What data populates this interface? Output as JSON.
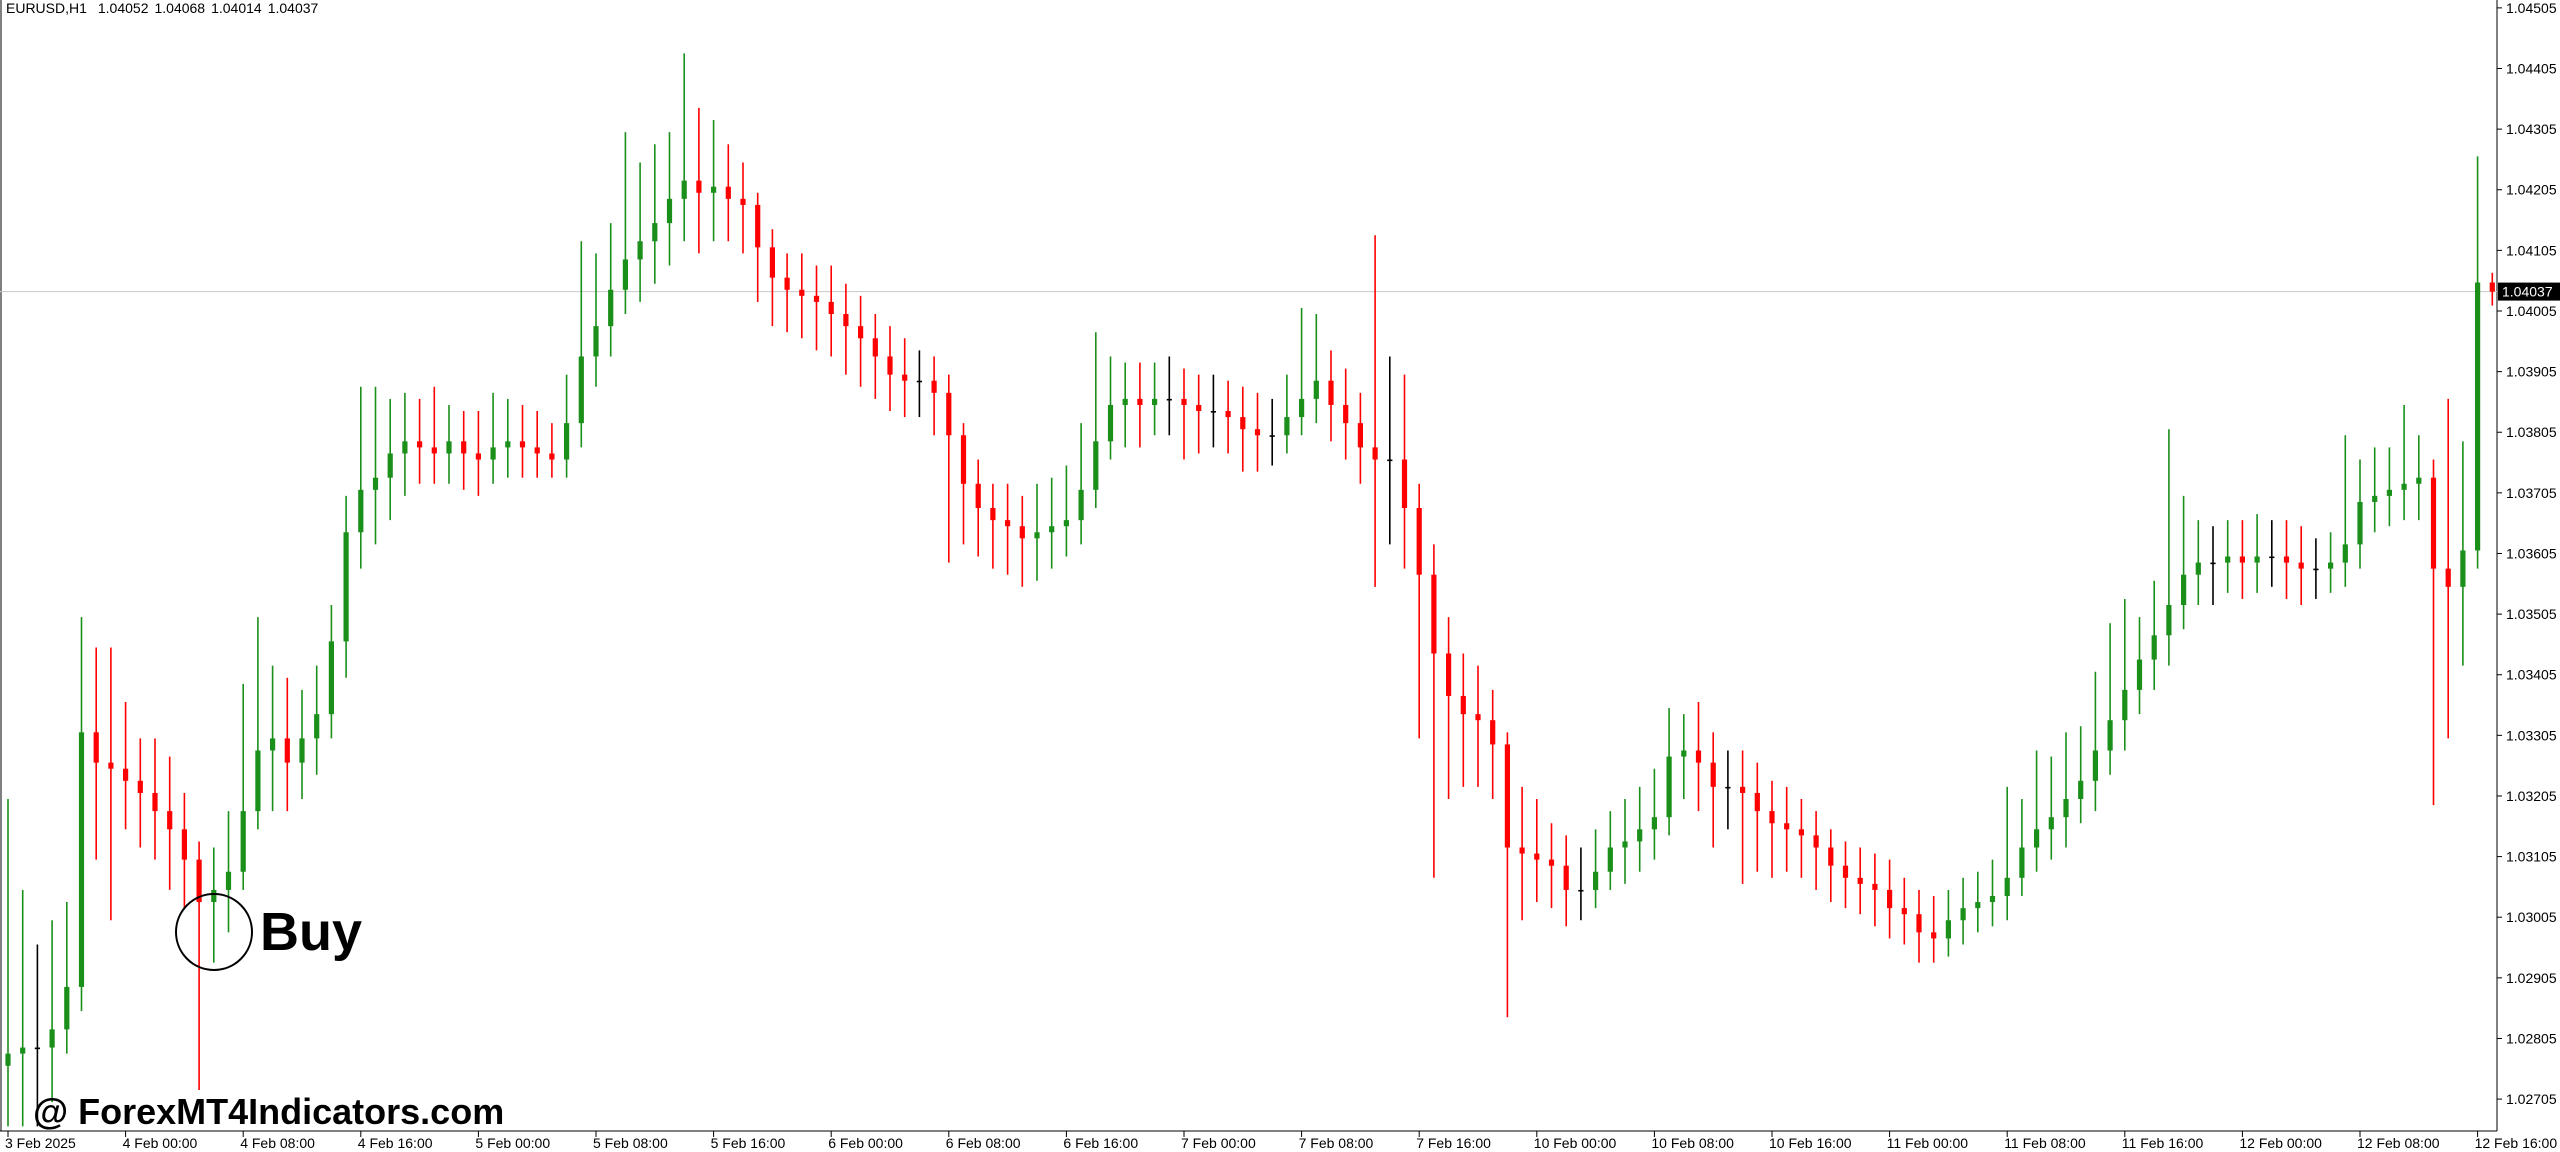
{
  "chart_data": {
    "type": "candlestick",
    "title": "EURUSD,H1",
    "annotation": "Buy",
    "watermark": "@ ForexMT4Indicators.com",
    "up_color": "#1a8f1a",
    "down_color": "#ff0000",
    "flat_color": "#000000",
    "ylim": [
      1.02654,
      1.04518
    ],
    "yticks": [
      1.04505,
      1.04405,
      1.04305,
      1.04205,
      1.04105,
      1.04005,
      1.03905,
      1.03805,
      1.03705,
      1.03605,
      1.03505,
      1.03405,
      1.03305,
      1.03205,
      1.03105,
      1.03005,
      1.02905,
      1.02805,
      1.02705
    ],
    "x": [
      "3 Feb 2025",
      null,
      null,
      null,
      null,
      null,
      null,
      null,
      "4 Feb 00:00",
      null,
      null,
      null,
      null,
      null,
      null,
      null,
      "4 Feb 08:00",
      null,
      null,
      null,
      null,
      null,
      null,
      null,
      "4 Feb 16:00",
      null,
      null,
      null,
      null,
      null,
      null,
      null,
      "5 Feb 00:00",
      null,
      null,
      null,
      null,
      null,
      null,
      null,
      "5 Feb 08:00",
      null,
      null,
      null,
      null,
      null,
      null,
      null,
      "5 Feb 16:00",
      null,
      null,
      null,
      null,
      null,
      null,
      null,
      "6 Feb 00:00",
      null,
      null,
      null,
      null,
      null,
      null,
      null,
      "6 Feb 08:00",
      null,
      null,
      null,
      null,
      null,
      null,
      null,
      "6 Feb 16:00",
      null,
      null,
      null,
      null,
      null,
      null,
      null,
      "7 Feb 00:00",
      null,
      null,
      null,
      null,
      null,
      null,
      null,
      "7 Feb 08:00",
      null,
      null,
      null,
      null,
      null,
      null,
      null,
      "7 Feb 16:00",
      null,
      null,
      null,
      null,
      null,
      null,
      null,
      "10 Feb 00:00",
      null,
      null,
      null,
      null,
      null,
      null,
      null,
      "10 Feb 08:00",
      null,
      null,
      null,
      null,
      null,
      null,
      null,
      "10 Feb 16:00",
      null,
      null,
      null,
      null,
      null,
      null,
      null,
      "11 Feb 00:00",
      null,
      null,
      null,
      null,
      null,
      null,
      null,
      "11 Feb 08:00",
      null,
      null,
      null,
      null,
      null,
      null,
      null,
      "11 Feb 16:00",
      null,
      null,
      null,
      null,
      null,
      null,
      null,
      "12 Feb 00:00",
      null,
      null,
      null,
      null,
      null,
      null,
      null,
      "12 Feb 08:00",
      null,
      null,
      null,
      null,
      null,
      null,
      null,
      "12 Feb 16:00",
      null
    ],
    "open": [
      1.0276,
      1.0278,
      1.0279,
      1.0279,
      1.0282,
      1.0289,
      1.0331,
      1.0326,
      1.0325,
      1.0323,
      1.0321,
      1.0318,
      1.0315,
      1.031,
      1.0303,
      1.0305,
      1.0308,
      1.0318,
      1.0328,
      1.033,
      1.0326,
      1.033,
      1.0334,
      1.0346,
      1.0364,
      1.0371,
      1.0373,
      1.0377,
      1.0379,
      1.0378,
      1.0377,
      1.0379,
      1.0377,
      1.0376,
      1.0378,
      1.0379,
      1.0378,
      1.0377,
      1.0376,
      1.0382,
      1.0393,
      1.0398,
      1.0404,
      1.0409,
      1.0412,
      1.0415,
      1.0419,
      1.0422,
      1.042,
      1.0421,
      1.0419,
      1.0418,
      1.0411,
      1.0406,
      1.0404,
      1.0403,
      1.0402,
      1.04,
      1.0398,
      1.0396,
      1.0393,
      1.039,
      1.0389,
      1.0389,
      1.0387,
      1.038,
      1.0372,
      1.0368,
      1.0366,
      1.0365,
      1.0363,
      1.0364,
      1.0365,
      1.0366,
      1.0371,
      1.0379,
      1.0385,
      1.0386,
      1.0385,
      1.0386,
      1.0386,
      1.0385,
      1.0384,
      1.0384,
      1.0383,
      1.0381,
      1.038,
      1.038,
      1.0383,
      1.0386,
      1.0389,
      1.0385,
      1.0382,
      1.0378,
      1.0376,
      1.0376,
      1.0368,
      1.0357,
      1.0344,
      1.0337,
      1.0334,
      1.0333,
      1.0329,
      1.0312,
      1.0311,
      1.031,
      1.0309,
      1.0305,
      1.0305,
      1.0308,
      1.0312,
      1.0313,
      1.0315,
      1.0317,
      1.0327,
      1.0328,
      1.0326,
      1.0322,
      1.0322,
      1.0321,
      1.0318,
      1.0316,
      1.0315,
      1.0314,
      1.0312,
      1.0309,
      1.0307,
      1.0306,
      1.0305,
      1.0302,
      1.0301,
      1.0298,
      1.0297,
      1.03,
      1.0302,
      1.0303,
      1.0304,
      1.0307,
      1.0312,
      1.0315,
      1.0317,
      1.032,
      1.0323,
      1.0328,
      1.0333,
      1.0338,
      1.0343,
      1.0347,
      1.0352,
      1.0357,
      1.0359,
      1.0359,
      1.036,
      1.0359,
      1.036,
      1.036,
      1.0359,
      1.0358,
      1.0358,
      1.0359,
      1.0362,
      1.0369,
      1.037,
      1.0371,
      1.0372,
      1.0373,
      1.0358,
      1.0355,
      1.0361,
      1.04052
    ],
    "high": [
      1.032,
      1.0305,
      1.0296,
      1.03,
      1.0303,
      1.035,
      1.0345,
      1.0345,
      1.0336,
      1.033,
      1.033,
      1.0327,
      1.0321,
      1.0313,
      1.0312,
      1.0318,
      1.0339,
      1.035,
      1.0342,
      1.034,
      1.0338,
      1.0342,
      1.0352,
      1.037,
      1.0388,
      1.0388,
      1.0386,
      1.0387,
      1.0386,
      1.0388,
      1.0385,
      1.0384,
      1.0384,
      1.0387,
      1.0386,
      1.0385,
      1.0384,
      1.0382,
      1.039,
      1.0412,
      1.041,
      1.0415,
      1.043,
      1.0425,
      1.0428,
      1.043,
      1.0443,
      1.0434,
      1.0432,
      1.0428,
      1.0425,
      1.042,
      1.0414,
      1.041,
      1.041,
      1.0408,
      1.0408,
      1.0405,
      1.0403,
      1.04,
      1.0398,
      1.0396,
      1.0394,
      1.0393,
      1.039,
      1.0382,
      1.0376,
      1.0372,
      1.0372,
      1.037,
      1.0372,
      1.0373,
      1.0375,
      1.0382,
      1.0397,
      1.0393,
      1.0392,
      1.0392,
      1.0392,
      1.0393,
      1.0391,
      1.039,
      1.039,
      1.0389,
      1.0388,
      1.0387,
      1.0386,
      1.039,
      1.0401,
      1.04,
      1.0394,
      1.0391,
      1.0387,
      1.0413,
      1.0393,
      1.039,
      1.0372,
      1.0362,
      1.035,
      1.0344,
      1.0342,
      1.0338,
      1.0331,
      1.0322,
      1.032,
      1.0316,
      1.0314,
      1.0312,
      1.0315,
      1.0318,
      1.032,
      1.0322,
      1.0325,
      1.0335,
      1.0334,
      1.0336,
      1.0331,
      1.0328,
      1.0328,
      1.0326,
      1.0323,
      1.0322,
      1.032,
      1.0318,
      1.0315,
      1.0313,
      1.0312,
      1.0311,
      1.031,
      1.0307,
      1.0305,
      1.0304,
      1.0305,
      1.0307,
      1.0308,
      1.031,
      1.0322,
      1.032,
      1.0328,
      1.0327,
      1.0331,
      1.0332,
      1.0341,
      1.0349,
      1.0353,
      1.035,
      1.0356,
      1.0381,
      1.037,
      1.0366,
      1.0365,
      1.0366,
      1.0366,
      1.0367,
      1.0366,
      1.0366,
      1.0365,
      1.0363,
      1.0364,
      1.038,
      1.0376,
      1.0378,
      1.0378,
      1.0385,
      1.038,
      1.0376,
      1.0386,
      1.0379,
      1.0426,
      1.04068
    ],
    "low": [
      1.0266,
      1.0266,
      1.0266,
      1.027,
      1.0278,
      1.0285,
      1.031,
      1.03,
      1.0315,
      1.0312,
      1.031,
      1.0305,
      1.0302,
      1.0272,
      1.0293,
      1.0298,
      1.0305,
      1.0315,
      1.0318,
      1.0318,
      1.032,
      1.0324,
      1.033,
      1.034,
      1.0358,
      1.0362,
      1.0366,
      1.037,
      1.0372,
      1.0372,
      1.0372,
      1.0371,
      1.037,
      1.0372,
      1.0373,
      1.0373,
      1.0373,
      1.0373,
      1.0373,
      1.0378,
      1.0388,
      1.0393,
      1.04,
      1.0402,
      1.0405,
      1.0408,
      1.0412,
      1.041,
      1.0412,
      1.0412,
      1.041,
      1.0402,
      1.0398,
      1.0397,
      1.0396,
      1.0394,
      1.0393,
      1.039,
      1.0388,
      1.0386,
      1.0384,
      1.0383,
      1.0383,
      1.038,
      1.0359,
      1.0362,
      1.036,
      1.0358,
      1.0357,
      1.0355,
      1.0356,
      1.0358,
      1.036,
      1.0362,
      1.0368,
      1.0376,
      1.0378,
      1.0378,
      1.038,
      1.038,
      1.0376,
      1.0377,
      1.0378,
      1.0377,
      1.0374,
      1.0374,
      1.0375,
      1.0377,
      1.038,
      1.0382,
      1.0379,
      1.0376,
      1.0372,
      1.0355,
      1.0362,
      1.0358,
      1.033,
      1.0307,
      1.032,
      1.0322,
      1.0322,
      1.032,
      1.0284,
      1.03,
      1.0303,
      1.0302,
      1.0299,
      1.03,
      1.0302,
      1.0305,
      1.0306,
      1.0308,
      1.031,
      1.0314,
      1.032,
      1.0318,
      1.0312,
      1.0315,
      1.0306,
      1.0308,
      1.0307,
      1.0308,
      1.0307,
      1.0305,
      1.0303,
      1.0302,
      1.0301,
      1.0299,
      1.0297,
      1.0296,
      1.0293,
      1.0293,
      1.0294,
      1.0296,
      1.0298,
      1.0299,
      1.03,
      1.0304,
      1.0308,
      1.031,
      1.0312,
      1.0316,
      1.0318,
      1.0324,
      1.0328,
      1.0334,
      1.0338,
      1.0342,
      1.0348,
      1.0352,
      1.0352,
      1.0354,
      1.0353,
      1.0354,
      1.0355,
      1.0353,
      1.0352,
      1.0353,
      1.0354,
      1.0355,
      1.0358,
      1.0364,
      1.0365,
      1.0366,
      1.0366,
      1.0319,
      1.033,
      1.0342,
      1.0358,
      1.04014
    ],
    "close": [
      1.0278,
      1.0279,
      1.0279,
      1.0282,
      1.0289,
      1.0331,
      1.0326,
      1.0325,
      1.0323,
      1.0321,
      1.0318,
      1.0315,
      1.031,
      1.0303,
      1.0305,
      1.0308,
      1.0318,
      1.0328,
      1.033,
      1.0326,
      1.033,
      1.0334,
      1.0346,
      1.0364,
      1.0371,
      1.0373,
      1.0377,
      1.0379,
      1.0378,
      1.0377,
      1.0379,
      1.0377,
      1.0376,
      1.0378,
      1.0379,
      1.0378,
      1.0377,
      1.0376,
      1.0382,
      1.0393,
      1.0398,
      1.0404,
      1.0409,
      1.0412,
      1.0415,
      1.0419,
      1.0422,
      1.042,
      1.0421,
      1.0419,
      1.0418,
      1.0411,
      1.0406,
      1.0404,
      1.0403,
      1.0402,
      1.04,
      1.0398,
      1.0396,
      1.0393,
      1.039,
      1.0389,
      1.0389,
      1.0387,
      1.038,
      1.0372,
      1.0368,
      1.0366,
      1.0365,
      1.0363,
      1.0364,
      1.0365,
      1.0366,
      1.0371,
      1.0379,
      1.0385,
      1.0386,
      1.0385,
      1.0386,
      1.0386,
      1.0385,
      1.0384,
      1.0384,
      1.0383,
      1.0381,
      1.038,
      1.038,
      1.0383,
      1.0386,
      1.0389,
      1.0385,
      1.0382,
      1.0378,
      1.0376,
      1.0376,
      1.0368,
      1.0357,
      1.0344,
      1.0337,
      1.0334,
      1.0333,
      1.0329,
      1.0312,
      1.0311,
      1.031,
      1.0309,
      1.0305,
      1.0305,
      1.0308,
      1.0312,
      1.0313,
      1.0315,
      1.0317,
      1.0327,
      1.0328,
      1.0326,
      1.0322,
      1.0322,
      1.0321,
      1.0318,
      1.0316,
      1.0315,
      1.0314,
      1.0312,
      1.0309,
      1.0307,
      1.0306,
      1.0305,
      1.0302,
      1.0301,
      1.0298,
      1.0297,
      1.03,
      1.0302,
      1.0303,
      1.0304,
      1.0307,
      1.0312,
      1.0315,
      1.0317,
      1.032,
      1.0323,
      1.0328,
      1.0333,
      1.0338,
      1.0343,
      1.0347,
      1.0352,
      1.0357,
      1.0359,
      1.0359,
      1.036,
      1.0359,
      1.036,
      1.036,
      1.0359,
      1.0358,
      1.0358,
      1.0359,
      1.0362,
      1.0369,
      1.037,
      1.0371,
      1.0372,
      1.0373,
      1.0358,
      1.0355,
      1.0361,
      1.04052,
      1.04037
    ]
  }
}
